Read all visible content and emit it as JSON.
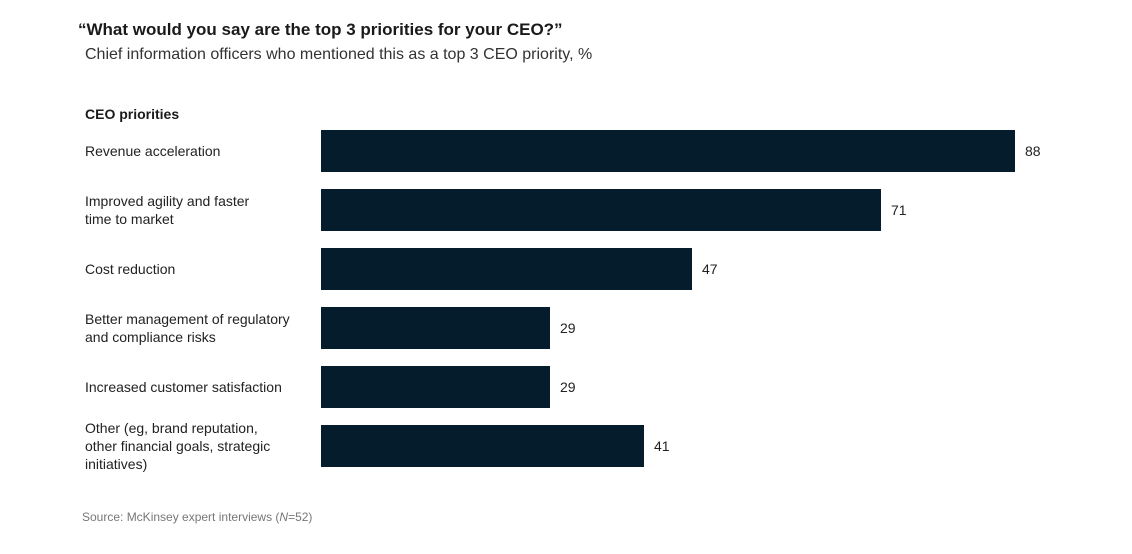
{
  "chart_data": {
    "type": "bar",
    "orientation": "horizontal",
    "title": "“What would you say are the top 3 priorities for your CEO?”",
    "subtitle": "Chief information officers who mentioned this as a top 3 CEO priority, %",
    "category_axis_label": "CEO priorities",
    "categories": [
      [
        "Revenue acceleration"
      ],
      [
        "Improved agility and faster",
        "time to market"
      ],
      [
        "Cost reduction"
      ],
      [
        "Better management of regulatory",
        "and compliance risks"
      ],
      [
        "Increased customer satisfaction"
      ],
      [
        "Other (eg, brand reputation,",
        "other financial goals, strategic",
        "initiatives)"
      ]
    ],
    "values": [
      88,
      71,
      47,
      29,
      29,
      41
    ],
    "xlim": [
      0,
      88
    ],
    "bar_color": "#051c2c",
    "data_labels": true,
    "grid": false,
    "source": {
      "prefix": "Source: McKinsey expert interviews (",
      "n_symbol": "N",
      "suffix": "=52)"
    }
  }
}
